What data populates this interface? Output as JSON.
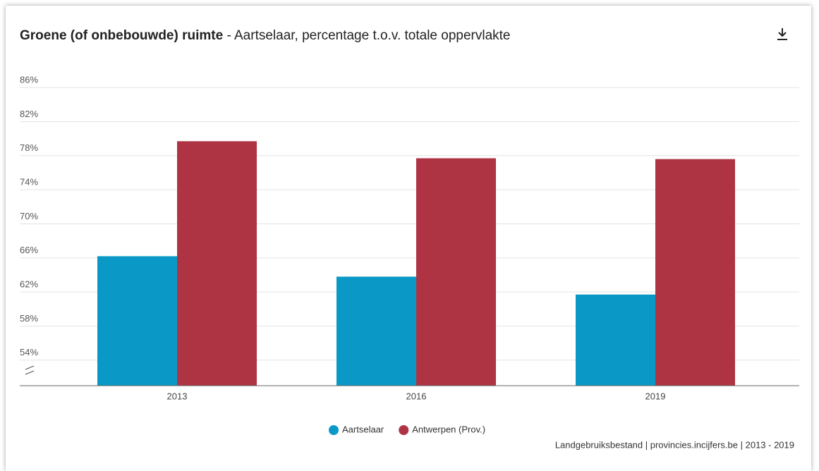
{
  "chart_data": {
    "type": "bar",
    "title": "Groene (of onbebouwde) ruimte",
    "subtitle": " - Aartselaar, percentage t.o.v. totale oppervlakte",
    "categories": [
      "2013",
      "2016",
      "2019"
    ],
    "series": [
      {
        "name": "Aartselaar",
        "color": "#0a99c6",
        "values": [
          66.2,
          63.8,
          61.7
        ]
      },
      {
        "name": "Antwerpen (Prov.)",
        "color": "#ae3444",
        "values": [
          79.7,
          77.7,
          77.6
        ]
      }
    ],
    "ylim": [
      51,
      88
    ],
    "yticks": [
      {
        "value": 54,
        "label": "54%"
      },
      {
        "value": 58,
        "label": "58%"
      },
      {
        "value": 62,
        "label": "62%"
      },
      {
        "value": 66,
        "label": "66%"
      },
      {
        "value": 70,
        "label": "70%"
      },
      {
        "value": 74,
        "label": "74%"
      },
      {
        "value": 78,
        "label": "78%"
      },
      {
        "value": 82,
        "label": "82%"
      },
      {
        "value": 86,
        "label": "86%"
      }
    ],
    "grid": true,
    "source": "Landgebruiksbestand | provincies.incijfers.be | 2013 - 2019"
  }
}
